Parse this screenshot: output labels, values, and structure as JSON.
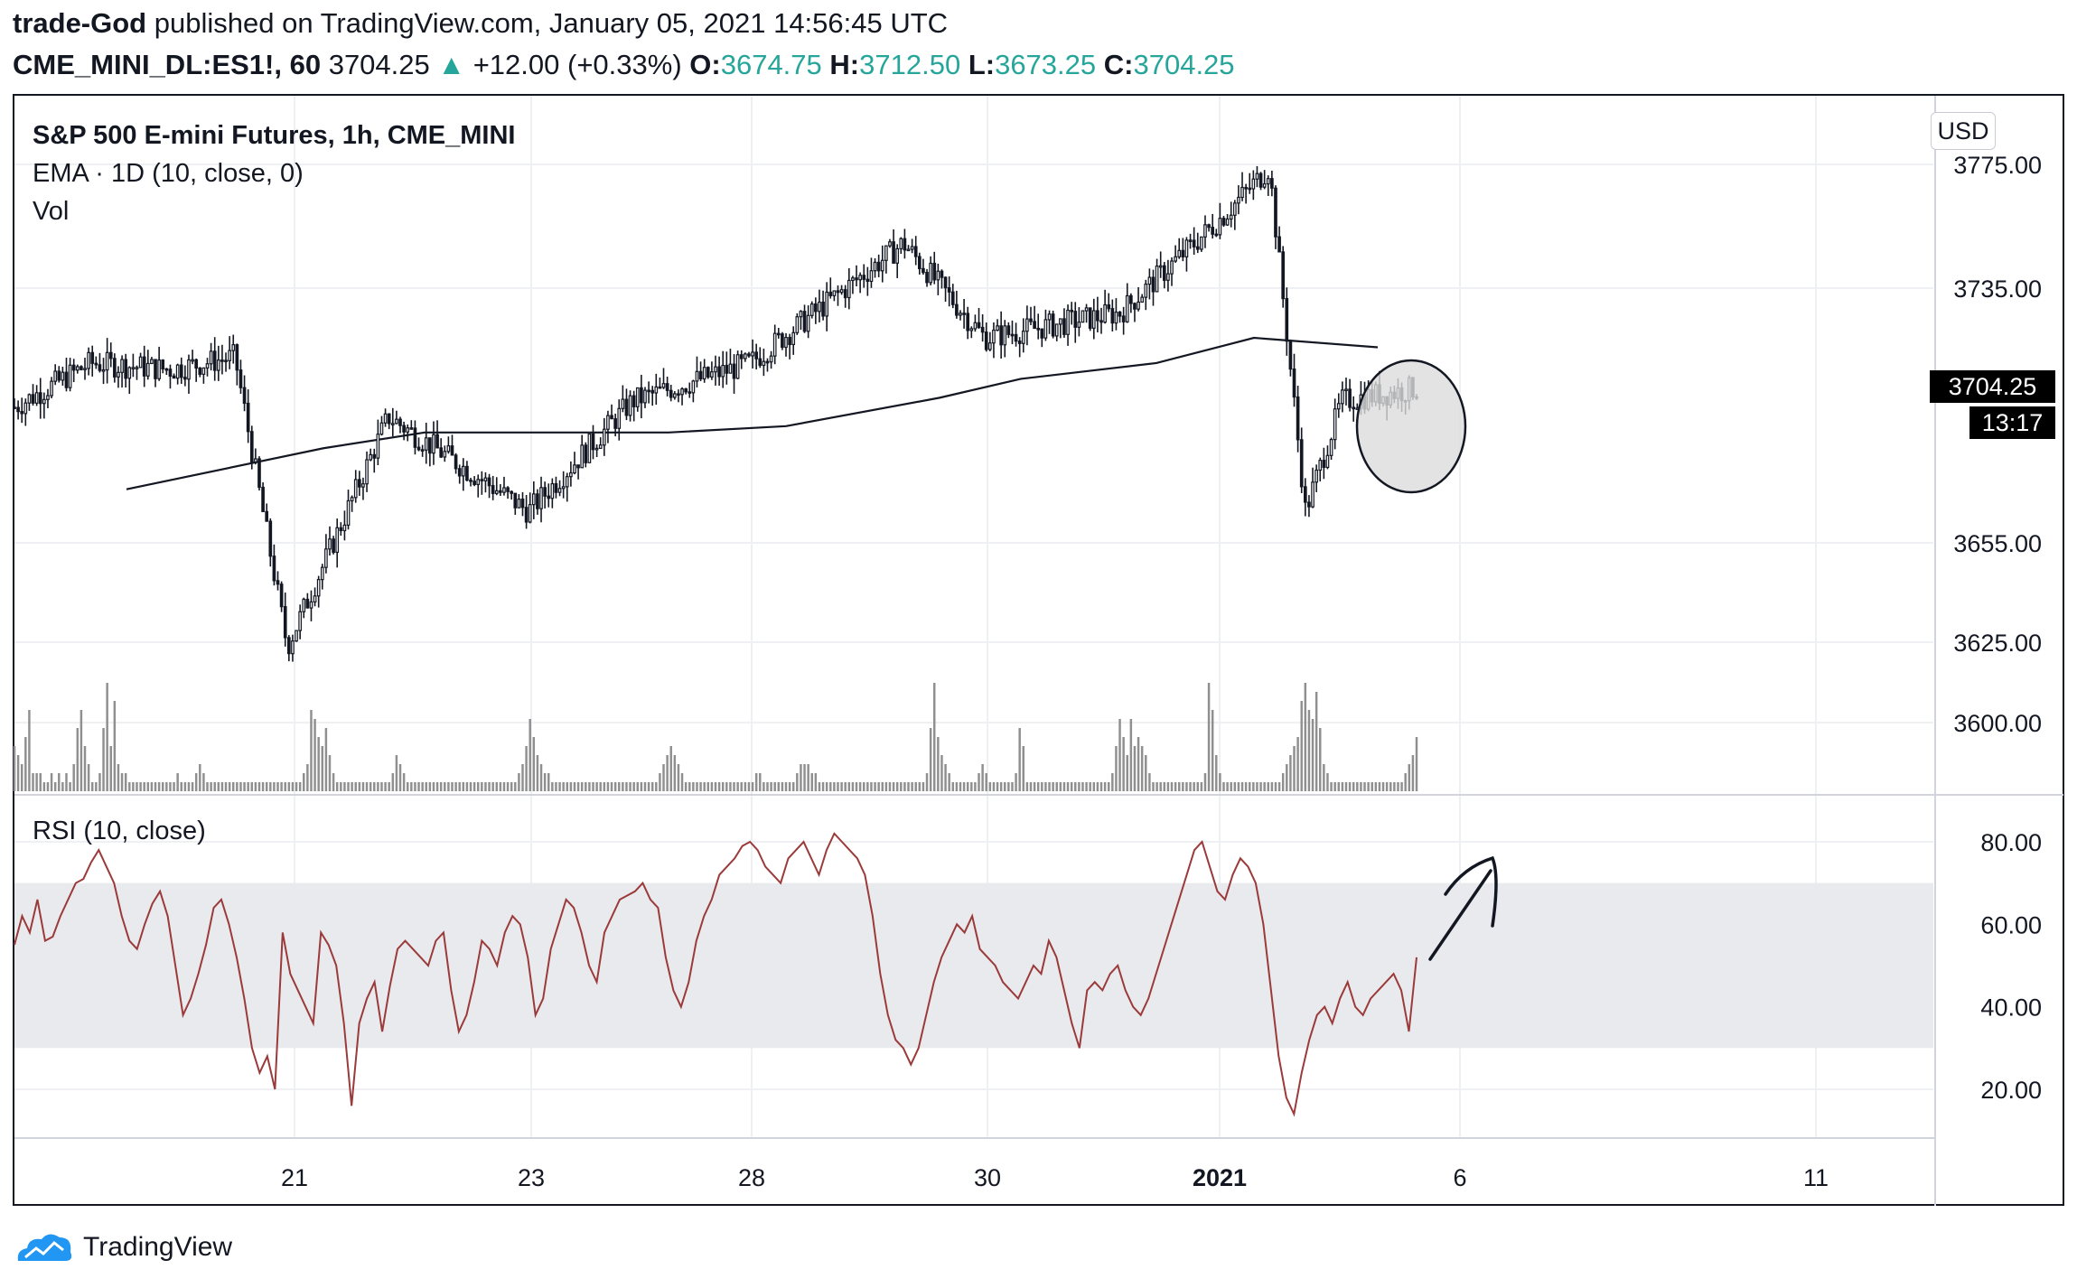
{
  "header": {
    "author": "trade-God",
    "published": "published on TradingView.com, January 05, 2021 14:56:45 UTC",
    "symbol": "CME_MINI_DL:ES1!, 60",
    "last": "3704.25",
    "arrow": "▲",
    "change": "+12.00 (+0.33%)",
    "o_label": "O:",
    "o_value": "3674.75",
    "h_label": "H:",
    "h_value": "3712.50",
    "l_label": "L:",
    "l_value": "3673.25",
    "c_label": "C:",
    "c_value": "3704.25"
  },
  "legend": {
    "title": "S&P 500 E-mini Futures, 1h, CME_MINI",
    "ema": "EMA · 1D (10, close, 0)",
    "vol": "Vol",
    "rsi": "RSI (10, close)"
  },
  "currency_button": "USD",
  "price_tag": {
    "price": "3704.25",
    "countdown": "13:17"
  },
  "footer": {
    "brand": "TradingView",
    "logo_icon": "tradingview-cloud-icon"
  },
  "colors": {
    "candle": "#131722",
    "ema": "#131722",
    "volume": "#8f8f8f",
    "rsi_line": "#9b3a3a",
    "rsi_band": "#e9eaed",
    "grid": "#eef0f3",
    "highlight": "#dcdcdc",
    "green": "#26a69a"
  },
  "chart_data": [
    {
      "type": "candlestick",
      "title": "S&P 500 E-mini Futures, 1h, CME_MINI",
      "y_axis_ticks": [
        "3775.00",
        "3735.00",
        "3655.00",
        "3625.00",
        "3600.00"
      ],
      "x_axis_ticks": [
        "21",
        "23",
        "28",
        "30",
        "2021",
        "6",
        "11"
      ],
      "ylim": [
        3580,
        3780
      ],
      "currency": "USD",
      "last_price": 3704.25,
      "ema_1d_10": [
        {
          "x": "Dec 18",
          "y": 3672
        },
        {
          "x": "Dec 21",
          "y": 3685
        },
        {
          "x": "Dec 22",
          "y": 3690
        },
        {
          "x": "Dec 23",
          "y": 3690
        },
        {
          "x": "Dec 24",
          "y": 3690
        },
        {
          "x": "Dec 28",
          "y": 3692
        },
        {
          "x": "Dec 29",
          "y": 3701
        },
        {
          "x": "Dec 30",
          "y": 3707
        },
        {
          "x": "Dec 31",
          "y": 3712
        },
        {
          "x": "Jan 1",
          "y": 3720
        },
        {
          "x": "Jan 4",
          "y": 3717
        }
      ],
      "price_path": [
        {
          "x": "Dec 17",
          "y": 3698
        },
        {
          "x": "Dec 18",
          "y": 3712
        },
        {
          "x": "Dec 19",
          "y": 3710
        },
        {
          "x": "Dec 20",
          "y": 3714
        },
        {
          "x": "Dec 21",
          "y": 3622
        },
        {
          "x": "Dec 22",
          "y": 3695
        },
        {
          "x": "Dec 23",
          "y": 3665
        },
        {
          "x": "Dec 24",
          "y": 3700
        },
        {
          "x": "Dec 28",
          "y": 3712
        },
        {
          "x": "Dec 29",
          "y": 3750
        },
        {
          "x": "Dec 30",
          "y": 3720
        },
        {
          "x": "Dec 31",
          "y": 3728
        },
        {
          "x": "Jan 1",
          "y": 3757
        },
        {
          "x": "Jan 2",
          "y": 3774
        },
        {
          "x": "Jan 3",
          "y": 3665
        },
        {
          "x": "Jan 4",
          "y": 3700
        },
        {
          "x": "Jan 5",
          "y": 3704
        }
      ]
    },
    {
      "type": "bar",
      "title": "Vol",
      "values": [
        5,
        4,
        3,
        6,
        9,
        2,
        2,
        2,
        1,
        1,
        2,
        1,
        2,
        1,
        2,
        1,
        3,
        7,
        9,
        5,
        3,
        1,
        1,
        2,
        7,
        12,
        5,
        10,
        3,
        2,
        2,
        1,
        1,
        1,
        1,
        1,
        1,
        1,
        1,
        1,
        1,
        1,
        1,
        1,
        2,
        1,
        1,
        1,
        1,
        2,
        3,
        2,
        1,
        1,
        1,
        1,
        1,
        1,
        1,
        1,
        1,
        1,
        1,
        1,
        1,
        1,
        1,
        1,
        1,
        1,
        1,
        1,
        1,
        1,
        1,
        1,
        1,
        1,
        2,
        3,
        9,
        8,
        6,
        5,
        7,
        4,
        2,
        1,
        1,
        1,
        1,
        1,
        1,
        1,
        1,
        1,
        1,
        1,
        1,
        1,
        1,
        1,
        2,
        4,
        3,
        2,
        1,
        1,
        1,
        1,
        1,
        1,
        1,
        1,
        1,
        1,
        1,
        1,
        1,
        1,
        1,
        1,
        1,
        1,
        1,
        1,
        1,
        1,
        1,
        1,
        1,
        1,
        1,
        1,
        1,
        1,
        2,
        3,
        5,
        8,
        6,
        4,
        3,
        2,
        2,
        1,
        1,
        1,
        1,
        1,
        1,
        1,
        1,
        1,
        1,
        1,
        1,
        1,
        1,
        1,
        1,
        1,
        1,
        1,
        1,
        1,
        1,
        1,
        1,
        1,
        1,
        1,
        1,
        1,
        2,
        3,
        4,
        5,
        4,
        3,
        2,
        1,
        1,
        1,
        1,
        1,
        1,
        1,
        1,
        1,
        1,
        1,
        1,
        1,
        1,
        1,
        1,
        1,
        1,
        1,
        2,
        2,
        1,
        1,
        1,
        1,
        1,
        1,
        1,
        1,
        1,
        2,
        3,
        3,
        3,
        2,
        2,
        1,
        1,
        1,
        1,
        1,
        1,
        1,
        1,
        1,
        1,
        1,
        1,
        1,
        1,
        1,
        1,
        1,
        1,
        1,
        1,
        1,
        1,
        1,
        1,
        1,
        1,
        1,
        1,
        1,
        2,
        7,
        12,
        6,
        4,
        3,
        2,
        1,
        1,
        1,
        1,
        1,
        1,
        1,
        2,
        3,
        2,
        1,
        1,
        1,
        1,
        1,
        1,
        1,
        2,
        7,
        5,
        1,
        1,
        1,
        1,
        1,
        1,
        1,
        1,
        1,
        1,
        1,
        1,
        1,
        1,
        1,
        1,
        1,
        1,
        1,
        1,
        1,
        1,
        1,
        2,
        5,
        8,
        6,
        4,
        8,
        5,
        6,
        5,
        4,
        2,
        1,
        1,
        1,
        1,
        1,
        1,
        1,
        1,
        1,
        1,
        1,
        1,
        1,
        1,
        2,
        12,
        9,
        4,
        2,
        1,
        1,
        1,
        1,
        1,
        1,
        1,
        1,
        1,
        1,
        1,
        1,
        1,
        1,
        1,
        1,
        2,
        3,
        4,
        5,
        6,
        10,
        12,
        9,
        8,
        11,
        7,
        3,
        2,
        1,
        1,
        1,
        1,
        1,
        1,
        1,
        1,
        1,
        1,
        1,
        1,
        1,
        1,
        1,
        1,
        1,
        1,
        1,
        1,
        2,
        3,
        4,
        6
      ]
    },
    {
      "type": "line",
      "title": "RSI (10, close)",
      "y_axis_ticks": [
        "80.00",
        "60.00",
        "40.00",
        "20.00"
      ],
      "ylim": [
        8,
        88
      ],
      "band": [
        30,
        70
      ],
      "values": [
        55,
        62,
        58,
        66,
        56,
        57,
        62,
        66,
        70,
        71,
        75,
        78,
        74,
        70,
        62,
        56,
        54,
        60,
        65,
        68,
        62,
        50,
        38,
        42,
        48,
        55,
        64,
        66,
        60,
        52,
        42,
        30,
        24,
        28,
        20,
        58,
        48,
        44,
        40,
        36,
        58,
        55,
        50,
        36,
        16,
        36,
        42,
        46,
        34,
        45,
        54,
        56,
        54,
        52,
        50,
        56,
        58,
        44,
        34,
        38,
        46,
        56,
        54,
        50,
        58,
        62,
        60,
        52,
        38,
        42,
        54,
        60,
        66,
        64,
        58,
        50,
        46,
        58,
        62,
        66,
        67,
        68,
        70,
        66,
        64,
        52,
        44,
        40,
        46,
        56,
        62,
        66,
        72,
        74,
        76,
        79,
        80,
        78,
        74,
        72,
        70,
        76,
        78,
        80,
        76,
        72,
        78,
        82,
        80,
        78,
        76,
        72,
        62,
        48,
        38,
        32,
        30,
        26,
        30,
        38,
        46,
        52,
        56,
        60,
        58,
        62,
        54,
        52,
        50,
        46,
        44,
        42,
        46,
        50,
        48,
        56,
        52,
        44,
        36,
        30,
        44,
        46,
        44,
        48,
        50,
        44,
        40,
        38,
        42,
        48,
        54,
        60,
        66,
        72,
        78,
        80,
        74,
        68,
        66,
        72,
        76,
        74,
        70,
        60,
        44,
        28,
        18,
        14,
        24,
        32,
        38,
        40,
        36,
        42,
        46,
        40,
        38,
        42,
        44,
        46,
        48,
        44,
        34,
        52
      ]
    }
  ],
  "annotations": {
    "circle": "highlight",
    "arrow": "up-right"
  }
}
